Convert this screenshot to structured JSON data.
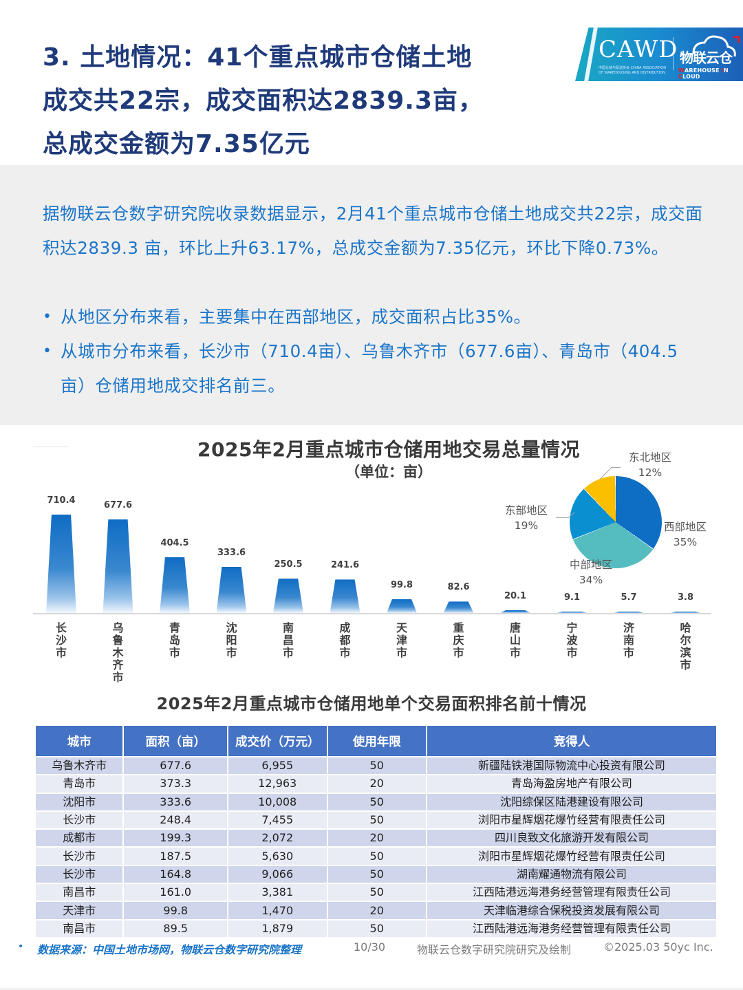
{
  "header": {
    "headline_lines": [
      "3. 土地情况：41个重点城市仓储土地",
      "成交共22宗，成交面积达2839.3亩，",
      "总成交金额为7.35亿元"
    ],
    "logo": {
      "cawd": "CAWD",
      "cawd_sub": "中国仓储与配送协会 CHINA ASSOCIATION OF WAREHOUSING AND DISTRIBUTION",
      "cloud_cn": "物联云仓",
      "cloud_en_w": "W",
      "cloud_en_1": "AREHOUSE ",
      "cloud_en_i": "I",
      "cloud_en_2": "N ",
      "cloud_en_c": "C",
      "cloud_en_3": "LOUD"
    }
  },
  "summary": {
    "paragraph": "据物联云仓数字研究院收录数据显示，2月41个重点城市仓储土地成交共22宗，成交面积达2839.3 亩，环比上升63.17%，总成交金额为7.35亿元，环比下降0.73%。",
    "bullets": [
      "从地区分布来看，主要集中在西部地区，成交面积占比35%。",
      "从城市分布来看，长沙市（710.4亩）、乌鲁木齐市（677.6亩）、青岛市（404.5亩）仓储用地成交排名前三。"
    ],
    "bullet_glyph": "•"
  },
  "chart_data": [
    {
      "type": "bar",
      "title": "2025年2月重点城市仓储用地交易总量情况",
      "subtitle": "（单位：亩）",
      "xlabel": "",
      "ylabel": "亩",
      "categories": [
        "长沙市",
        "乌鲁木齐市",
        "青岛市",
        "沈阳市",
        "南昌市",
        "成都市",
        "天津市",
        "重庆市",
        "唐山市",
        "宁波市",
        "济南市",
        "哈尔滨市"
      ],
      "values": [
        710.4,
        677.6,
        404.5,
        333.6,
        250.5,
        241.6,
        99.8,
        82.6,
        20.1,
        9.1,
        5.7,
        3.8
      ],
      "value_labels": [
        "710.4",
        "677.6",
        "404.5",
        "333.6",
        "250.5",
        "241.6",
        "99.8",
        "82.6",
        "20.1",
        "9.1",
        "5.7",
        "3.8"
      ],
      "ylim": [
        0,
        750
      ],
      "grid": false,
      "bar_color": "#1a6fc4"
    },
    {
      "type": "pie",
      "title": "地区分布",
      "labels": [
        "西部地区",
        "中部地区",
        "东部地区",
        "东北地区"
      ],
      "values": [
        35,
        34,
        19,
        12
      ],
      "value_labels": [
        "35%",
        "34%",
        "19%",
        "12%"
      ],
      "colors": [
        "#0e6ec3",
        "#55bcbf",
        "#0a8fd0",
        "#fcbf00"
      ],
      "legend": "none"
    },
    {
      "type": "table",
      "title": "2025年2月重点城市仓储用地单个交易面积排名前十情况",
      "columns": [
        "城市",
        "面积（亩）",
        "成交价（万元）",
        "使用年限",
        "竞得人"
      ],
      "rows": [
        [
          "乌鲁木齐市",
          "677.6",
          "6,955",
          "50",
          "新疆陆铁港国际物流中心投资有限公司"
        ],
        [
          "青岛市",
          "373.3",
          "12,963",
          "20",
          "青岛海盈房地产有限公司"
        ],
        [
          "沈阳市",
          "333.6",
          "10,008",
          "50",
          "沈阳综保区陆港建设有限公司"
        ],
        [
          "长沙市",
          "248.4",
          "7,455",
          "50",
          "浏阳市星辉烟花爆竹经营有限责任公司"
        ],
        [
          "成都市",
          "199.3",
          "2,072",
          "20",
          "四川良致文化旅游开发有限公司"
        ],
        [
          "长沙市",
          "187.5",
          "5,630",
          "50",
          "浏阳市星辉烟花爆竹经营有限责任公司"
        ],
        [
          "长沙市",
          "164.8",
          "9,066",
          "50",
          "湖南耀通物流有限公司"
        ],
        [
          "南昌市",
          "161.0",
          "3,381",
          "50",
          "江西陆港远海港务经营管理有限责任公司"
        ],
        [
          "天津市",
          "99.8",
          "1,470",
          "20",
          "天津临港综合保税投资发展有限公司"
        ],
        [
          "南昌市",
          "89.5",
          "1,879",
          "50",
          "江西陆港远海港务经营管理有限责任公司"
        ]
      ],
      "header_color": "#4472c4"
    }
  ],
  "footer": {
    "source": "数据来源：中国土地市场网，物联云仓数字研究院整理",
    "page": "10/30",
    "credit": "物联云仓数字研究院研究及绘制",
    "copyright": "©2025.03 50yc Inc."
  },
  "colors": {
    "headline": "#1f3a7a",
    "summary_text": "#1a74c8",
    "summary_bg": "#efeff0",
    "table_header": "#4472c4",
    "row_odd": "#cfd5ea",
    "row_even": "#e9ebf5"
  }
}
